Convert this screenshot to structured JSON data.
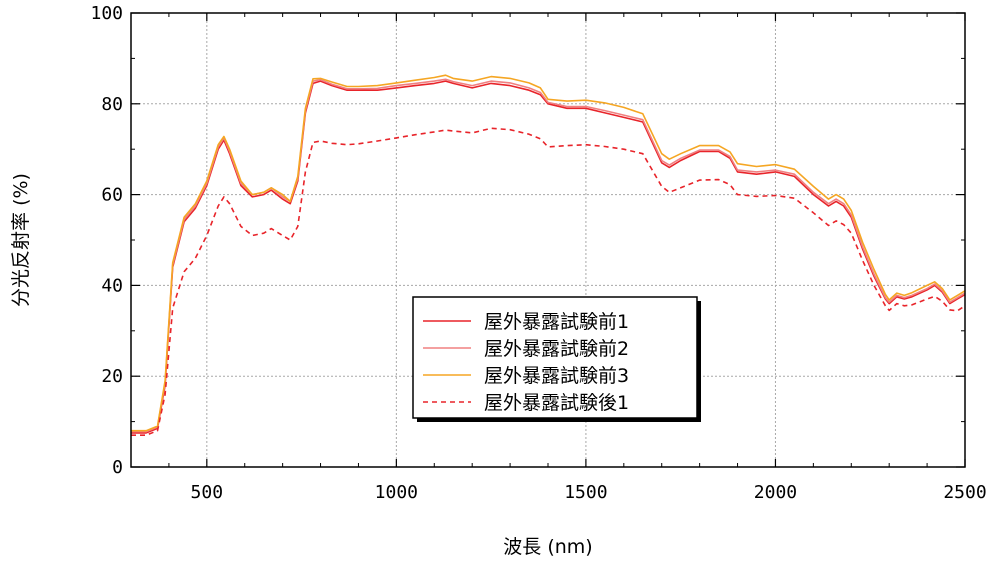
{
  "chart_data": {
    "type": "line",
    "xlabel": "波長 (nm)",
    "ylabel": "分光反射率 (%)",
    "xlim": [
      300,
      2500
    ],
    "ylim": [
      0,
      100
    ],
    "xticks": [
      500,
      1000,
      1500,
      2000,
      2500
    ],
    "yticks": [
      0,
      20,
      40,
      60,
      80,
      100
    ],
    "grid": true,
    "legend_position": "center-bottom",
    "series": [
      {
        "name": "屋外暴露試験前1",
        "color": "#e8242a",
        "dash": "solid",
        "x": [
          300,
          340,
          370,
          390,
          410,
          440,
          470,
          500,
          530,
          545,
          560,
          590,
          620,
          650,
          670,
          700,
          720,
          740,
          760,
          780,
          800,
          830,
          870,
          900,
          950,
          1000,
          1050,
          1100,
          1130,
          1150,
          1200,
          1250,
          1300,
          1350,
          1380,
          1400,
          1450,
          1500,
          1550,
          1600,
          1650,
          1700,
          1720,
          1750,
          1800,
          1850,
          1880,
          1900,
          1950,
          2000,
          2050,
          2100,
          2140,
          2160,
          2180,
          2200,
          2230,
          2260,
          2290,
          2300,
          2320,
          2340,
          2360,
          2400,
          2420,
          2440,
          2460,
          2480,
          2500
        ],
        "y": [
          7.5,
          7.5,
          8.5,
          18,
          44,
          54,
          57,
          62,
          70,
          72,
          69,
          62,
          59.5,
          60,
          61,
          59,
          58,
          63,
          78,
          84.5,
          85,
          84,
          83,
          83,
          83,
          83.5,
          84,
          84.5,
          85,
          84.5,
          83.5,
          84.5,
          84,
          83,
          82,
          80,
          79,
          79,
          78,
          77,
          76,
          67,
          66,
          67.5,
          69.5,
          69.5,
          68,
          65,
          64.5,
          65,
          64,
          60,
          57.5,
          58.5,
          57.5,
          55,
          48,
          42,
          37,
          36,
          37.5,
          37,
          37.5,
          39,
          40,
          38.5,
          36,
          37,
          38
        ]
      },
      {
        "name": "屋外暴露試験前2",
        "color": "#f08080",
        "dash": "solid",
        "x": [
          300,
          340,
          370,
          390,
          410,
          440,
          470,
          500,
          530,
          545,
          560,
          590,
          620,
          650,
          670,
          700,
          720,
          740,
          760,
          780,
          800,
          830,
          870,
          900,
          950,
          1000,
          1050,
          1100,
          1130,
          1150,
          1200,
          1250,
          1300,
          1350,
          1380,
          1400,
          1450,
          1500,
          1550,
          1600,
          1650,
          1700,
          1720,
          1750,
          1800,
          1850,
          1880,
          1900,
          1950,
          2000,
          2050,
          2100,
          2140,
          2160,
          2180,
          2200,
          2230,
          2260,
          2290,
          2300,
          2320,
          2340,
          2360,
          2400,
          2420,
          2440,
          2460,
          2480,
          2500
        ],
        "y": [
          7.8,
          7.8,
          8.8,
          18.5,
          44.5,
          54.5,
          57.5,
          62.5,
          70.5,
          72.5,
          69.5,
          62.5,
          60,
          60.5,
          61.5,
          59.5,
          58.5,
          63.5,
          78.5,
          85,
          85.3,
          84.3,
          83.3,
          83.3,
          83.4,
          84,
          84.5,
          85,
          85.4,
          84.9,
          84,
          85,
          84.6,
          83.5,
          82.5,
          80.3,
          79.4,
          79.4,
          78.5,
          77.5,
          76.5,
          67.5,
          66.5,
          68,
          69.8,
          69.8,
          68.4,
          65.4,
          65,
          65.4,
          64.5,
          60.5,
          58,
          59,
          58,
          55.5,
          48.5,
          42.5,
          37.3,
          36.3,
          37.8,
          37.3,
          37.8,
          39.3,
          40.3,
          38.8,
          36.3,
          37.3,
          38.3
        ]
      },
      {
        "name": "屋外暴露試験前3",
        "color": "#f5a623",
        "dash": "solid",
        "x": [
          300,
          340,
          370,
          390,
          410,
          440,
          470,
          500,
          530,
          545,
          560,
          590,
          620,
          650,
          670,
          700,
          720,
          740,
          760,
          780,
          800,
          830,
          870,
          900,
          950,
          1000,
          1050,
          1100,
          1130,
          1150,
          1200,
          1250,
          1300,
          1350,
          1380,
          1400,
          1450,
          1500,
          1550,
          1600,
          1650,
          1700,
          1720,
          1750,
          1800,
          1850,
          1880,
          1900,
          1950,
          2000,
          2050,
          2100,
          2140,
          2160,
          2180,
          2200,
          2230,
          2260,
          2290,
          2300,
          2320,
          2340,
          2360,
          2400,
          2420,
          2440,
          2460,
          2480,
          2500
        ],
        "y": [
          8,
          8,
          9,
          19,
          45,
          55,
          58,
          63,
          71,
          72.8,
          70,
          63,
          60,
          60.5,
          61.5,
          60,
          58.5,
          64,
          79,
          85.5,
          85.6,
          84.8,
          83.8,
          83.8,
          84,
          84.6,
          85.2,
          85.8,
          86.3,
          85.6,
          85,
          86,
          85.6,
          84.6,
          83.5,
          81,
          80.6,
          80.8,
          80.2,
          79.2,
          77.8,
          69,
          67.8,
          69,
          70.8,
          70.8,
          69.4,
          66.8,
          66.2,
          66.6,
          65.6,
          61.8,
          59,
          60,
          59,
          56.5,
          49.5,
          43.5,
          38,
          36.8,
          38.3,
          37.8,
          38.4,
          40,
          40.8,
          39.3,
          36.8,
          37.8,
          38.8
        ]
      },
      {
        "name": "屋外暴露試験後1",
        "color": "#e8242a",
        "dash": "dashed",
        "x": [
          300,
          340,
          370,
          390,
          410,
          440,
          470,
          500,
          530,
          545,
          560,
          590,
          620,
          650,
          670,
          700,
          720,
          740,
          760,
          780,
          800,
          830,
          870,
          900,
          950,
          1000,
          1050,
          1100,
          1130,
          1150,
          1200,
          1250,
          1300,
          1350,
          1380,
          1400,
          1450,
          1500,
          1550,
          1600,
          1650,
          1700,
          1720,
          1750,
          1800,
          1850,
          1880,
          1900,
          1950,
          2000,
          2050,
          2100,
          2140,
          2160,
          2180,
          2200,
          2230,
          2260,
          2290,
          2300,
          2320,
          2340,
          2360,
          2400,
          2420,
          2440,
          2460,
          2480,
          2500
        ],
        "y": [
          7,
          7,
          8,
          16,
          35,
          43,
          46,
          51,
          57.5,
          59.5,
          58,
          53,
          51,
          51.5,
          52.5,
          51,
          50,
          53,
          65,
          71.5,
          71.8,
          71.3,
          71,
          71.2,
          71.8,
          72.5,
          73.2,
          73.8,
          74.2,
          74,
          73.6,
          74.6,
          74.3,
          73.3,
          72.3,
          70.5,
          70.8,
          71,
          70.6,
          70,
          69,
          61.8,
          60.5,
          61.5,
          63.2,
          63.3,
          62.2,
          60,
          59.6,
          59.8,
          59.2,
          56,
          53.2,
          54.2,
          53.4,
          51.5,
          45.5,
          40,
          35.5,
          34.5,
          36,
          35.5,
          35.7,
          37,
          37.6,
          36.5,
          34.6,
          34.4,
          35.5
        ]
      }
    ]
  }
}
